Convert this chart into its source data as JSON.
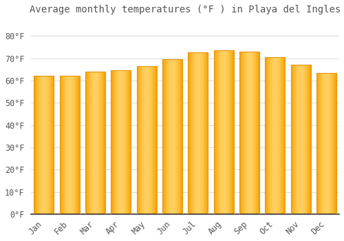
{
  "title": "Average monthly temperatures (°F ) in Playa del Ingles",
  "months": [
    "Jan",
    "Feb",
    "Mar",
    "Apr",
    "May",
    "Jun",
    "Jul",
    "Aug",
    "Sep",
    "Oct",
    "Nov",
    "Dec"
  ],
  "values": [
    62,
    62,
    64,
    64.5,
    66.5,
    69.5,
    72.5,
    73.5,
    73,
    70.5,
    67,
    63.5
  ],
  "bar_color_main": "#FFA726",
  "bar_color_edge": "#E69510",
  "background_color": "#FFFFFF",
  "grid_color": "#DDDDDD",
  "text_color": "#555555",
  "ylim": [
    0,
    88
  ],
  "yticks": [
    0,
    10,
    20,
    30,
    40,
    50,
    60,
    70,
    80
  ],
  "title_fontsize": 10,
  "tick_fontsize": 8.5,
  "bar_width": 0.78
}
